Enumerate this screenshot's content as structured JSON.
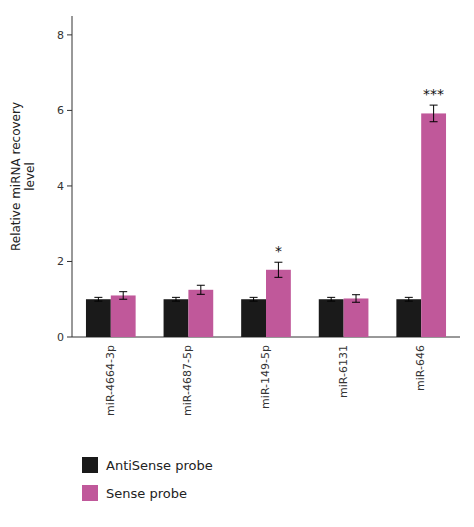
{
  "chart_data": {
    "type": "bar",
    "categories": [
      "miR-4664-3p",
      "miR-4687-5p",
      "miR-149-5p",
      "miR-6131",
      "miR-646"
    ],
    "series": [
      {
        "name": "AntiSense probe",
        "color": "#1a1a1a",
        "values": [
          1.0,
          1.0,
          1.0,
          1.0,
          1.0
        ],
        "errors": [
          0.05,
          0.05,
          0.05,
          0.05,
          0.05
        ]
      },
      {
        "name": "Sense probe",
        "color": "#c0589a",
        "values": [
          1.1,
          1.25,
          1.78,
          1.02,
          5.92
        ],
        "errors": [
          0.1,
          0.12,
          0.2,
          0.1,
          0.22
        ],
        "annotations": [
          null,
          null,
          "*",
          null,
          "***"
        ]
      }
    ],
    "ylabel": "Relative miRNA recovery\nlevel",
    "ylim": [
      0,
      8.5
    ],
    "yticks": [
      0,
      2,
      4,
      6,
      8
    ],
    "legend": "bottom",
    "grid": false
  }
}
